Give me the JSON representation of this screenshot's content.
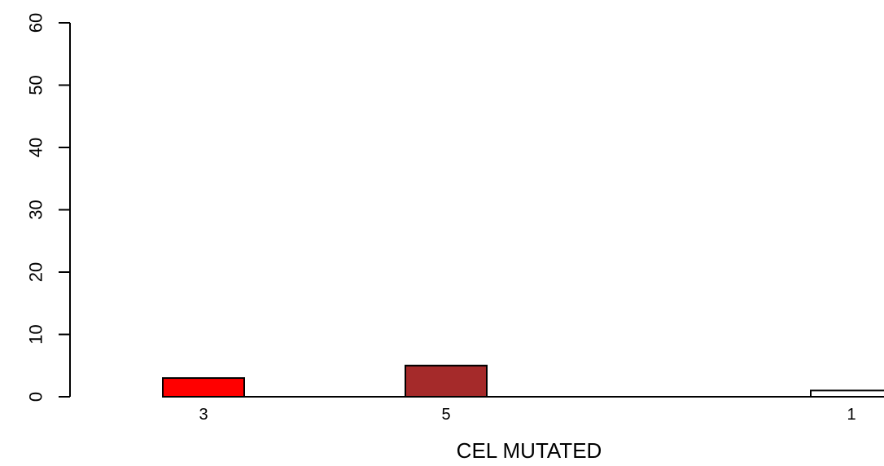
{
  "chart_data": {
    "type": "bar",
    "categories": [
      "3",
      "5",
      "1"
    ],
    "values": [
      3,
      5,
      1
    ],
    "colors": [
      "#ff0000",
      "#a52a2a",
      "#ffffff"
    ],
    "xlabel": "CEL MUTATED",
    "ylabel": "",
    "ylim": [
      0,
      60
    ],
    "yticks": [
      0,
      10,
      20,
      30,
      40,
      50,
      60
    ],
    "grid": false
  }
}
